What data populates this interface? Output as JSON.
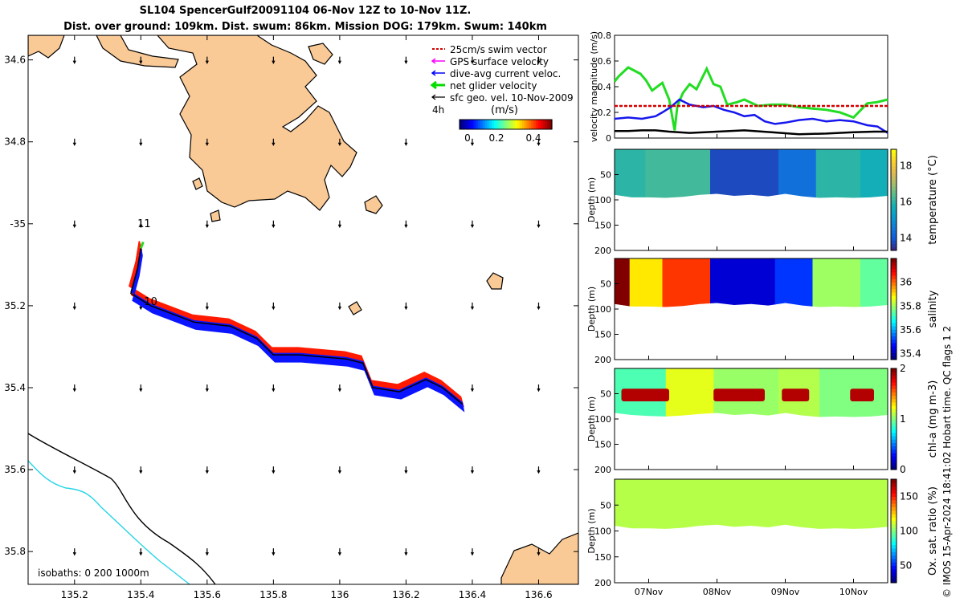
{
  "title_line1": "SL104 SpencerGulf20091104 06-Nov 12Z to 10-Nov 11Z.",
  "title_line2": "Dist. over ground: 109km. Dist. swum: 86km. Mission DOG: 179km. Swum: 140km",
  "credit": "© IMOS 15-Apr-2024 18:41:02 Hobart time. QC flags 1  2",
  "chart_data": [
    {
      "type": "map",
      "xlabel_ticks": [
        "135.2",
        "135.4",
        "135.6",
        "135.8",
        "136",
        "136.2",
        "136.4",
        "136.6"
      ],
      "xticks": [
        135.2,
        135.4,
        135.6,
        135.8,
        136.0,
        136.2,
        136.4,
        136.6
      ],
      "yticks": [
        -34.6,
        -34.8,
        -35.0,
        -35.2,
        -35.4,
        -35.6,
        -35.8
      ],
      "ytick_labels": [
        "34.6",
        "34.8",
        "-35",
        "35.2",
        "35.4",
        "35.6",
        "35.8"
      ],
      "xlim": [
        135.06,
        136.72
      ],
      "ylim": [
        -35.88,
        -34.54
      ],
      "legend": [
        {
          "label": "25cm/s swim vector",
          "color": "#d40000"
        },
        {
          "label": "GPS surface velocity",
          "color": "#ff00ff"
        },
        {
          "label": "dive-avg current veloc.",
          "color": "#0000ff"
        },
        {
          "label": "net glider velocity",
          "color": "#00dd00"
        },
        {
          "label": "sfc geo. vel. 10-Nov-2009",
          "color": "#000000"
        }
      ],
      "colorbar_title": "(m/s)",
      "colorbar_ticks": [
        "0",
        "0.2",
        "0.4"
      ],
      "colorbar_range": [
        0,
        0.5
      ],
      "time_label": "4h",
      "day_labels": [
        {
          "text": "11",
          "lon": 135.41,
          "lat": -35.0
        },
        {
          "text": "10",
          "lon": 135.43,
          "lat": -35.19
        }
      ],
      "isobath_text": "isobaths: 0   200  1000m",
      "track": [
        [
          135.4,
          -35.06
        ],
        [
          135.39,
          -35.11
        ],
        [
          135.37,
          -35.17
        ],
        [
          135.43,
          -35.2
        ],
        [
          135.56,
          -35.24
        ],
        [
          135.67,
          -35.25
        ],
        [
          135.75,
          -35.28
        ],
        [
          135.8,
          -35.32
        ],
        [
          135.88,
          -35.32
        ],
        [
          136.02,
          -35.33
        ],
        [
          136.07,
          -35.34
        ],
        [
          136.1,
          -35.4
        ],
        [
          136.18,
          -35.41
        ],
        [
          136.26,
          -35.38
        ],
        [
          136.31,
          -35.4
        ],
        [
          136.37,
          -35.44
        ]
      ],
      "land_color": "#f9c996",
      "isobath_colors": [
        "#000000",
        "#27d4e6"
      ]
    },
    {
      "type": "line",
      "ylabel": "velocity magnitude (m/s)",
      "ylim": [
        0,
        0.8
      ],
      "yticks": [
        "0",
        "0.2",
        "0.4",
        "0.6",
        "0.8"
      ],
      "xlim": [
        6.5,
        10.5
      ],
      "series": [
        {
          "name": "net glider velocity",
          "color": "#22dd22",
          "x": [
            6.5,
            6.56,
            6.7,
            6.88,
            6.96,
            7.05,
            7.2,
            7.3,
            7.38,
            7.42,
            7.5,
            7.6,
            7.7,
            7.85,
            7.95,
            8.05,
            8.15,
            8.3,
            8.4,
            8.6,
            8.8,
            9.0,
            9.2,
            9.4,
            9.6,
            9.8,
            10.0,
            10.2,
            10.35,
            10.5
          ],
          "values": [
            0.44,
            0.48,
            0.55,
            0.5,
            0.45,
            0.37,
            0.43,
            0.3,
            0.06,
            0.25,
            0.35,
            0.42,
            0.38,
            0.54,
            0.42,
            0.4,
            0.26,
            0.28,
            0.3,
            0.25,
            0.26,
            0.26,
            0.24,
            0.23,
            0.22,
            0.2,
            0.16,
            0.27,
            0.28,
            0.3
          ]
        },
        {
          "name": "dive-avg current veloc.",
          "color": "#1616ee",
          "x": [
            6.5,
            6.7,
            6.9,
            7.1,
            7.2,
            7.32,
            7.45,
            7.6,
            7.8,
            7.95,
            8.1,
            8.25,
            8.4,
            8.55,
            8.7,
            8.85,
            9.0,
            9.2,
            9.4,
            9.6,
            9.8,
            10.0,
            10.2,
            10.35,
            10.5
          ],
          "values": [
            0.15,
            0.16,
            0.15,
            0.17,
            0.2,
            0.24,
            0.3,
            0.26,
            0.24,
            0.25,
            0.22,
            0.2,
            0.17,
            0.18,
            0.13,
            0.11,
            0.12,
            0.14,
            0.15,
            0.13,
            0.14,
            0.13,
            0.1,
            0.09,
            0.04
          ]
        },
        {
          "name": "25cm/s swim vector",
          "color": "#d40000",
          "dashed": true,
          "x": [
            6.5,
            10.5
          ],
          "values": [
            0.25,
            0.25
          ]
        },
        {
          "name": "sfc geo. vel.",
          "color": "#000000",
          "x": [
            6.5,
            6.7,
            6.9,
            7.1,
            7.3,
            7.6,
            8.0,
            8.4,
            8.8,
            9.2,
            9.6,
            10.0,
            10.3,
            10.5
          ],
          "values": [
            0.055,
            0.055,
            0.06,
            0.06,
            0.05,
            0.04,
            0.05,
            0.06,
            0.045,
            0.03,
            0.035,
            0.045,
            0.05,
            0.05
          ]
        }
      ]
    },
    {
      "type": "heatmap",
      "ylabel": "Depth (m)",
      "ylim": [
        0,
        200
      ],
      "yticks": [
        "50",
        "100",
        "150",
        "200"
      ],
      "colorbar_label": "temperature (°C)",
      "colorbar_range": [
        13.3,
        18.9
      ],
      "colorbar_ticks": [
        "14",
        "16",
        "18"
      ],
      "bottom_depth": [
        90,
        95,
        95,
        96,
        94,
        90,
        88,
        92,
        90,
        93,
        88,
        93,
        96,
        95,
        96,
        95,
        92
      ],
      "columns": [
        {
          "x0": 6.5,
          "x1": 6.95,
          "value": 16.0
        },
        {
          "x0": 6.95,
          "x1": 7.9,
          "value": 16.2
        },
        {
          "x0": 7.9,
          "x1": 8.9,
          "value": 13.7
        },
        {
          "x0": 8.9,
          "x1": 9.45,
          "value": 14.3
        },
        {
          "x0": 9.45,
          "x1": 10.1,
          "value": 16.0
        },
        {
          "x0": 10.1,
          "x1": 10.5,
          "value": 15.7
        }
      ]
    },
    {
      "type": "heatmap",
      "ylabel": "Depth (m)",
      "ylim": [
        0,
        200
      ],
      "yticks": [
        "50",
        "100",
        "150",
        "200"
      ],
      "colorbar_label": "salinity",
      "colorbar_range": [
        35.35,
        36.2
      ],
      "colorbar_ticks": [
        "35.4",
        "35.6",
        "35.8",
        "36"
      ],
      "side_label": "QC flags 1  2",
      "bottom_depth": [
        90,
        95,
        95,
        96,
        94,
        90,
        88,
        92,
        90,
        93,
        88,
        93,
        96,
        95,
        96,
        95,
        92
      ],
      "columns": [
        {
          "x0": 6.5,
          "x1": 6.72,
          "value": 36.2
        },
        {
          "x0": 6.72,
          "x1": 7.2,
          "value": 35.9
        },
        {
          "x0": 7.2,
          "x1": 7.9,
          "value": 36.05
        },
        {
          "x0": 7.9,
          "x1": 8.85,
          "value": 35.42
        },
        {
          "x0": 8.85,
          "x1": 9.4,
          "value": 35.5
        },
        {
          "x0": 9.4,
          "x1": 10.1,
          "value": 35.8
        },
        {
          "x0": 10.1,
          "x1": 10.5,
          "value": 35.75
        }
      ]
    },
    {
      "type": "heatmap",
      "ylabel": "Depth (m)",
      "ylim": [
        0,
        200
      ],
      "yticks": [
        "50",
        "100",
        "150",
        "200"
      ],
      "colorbar_label": "chl-a (mg m-3)",
      "colorbar_range": [
        0,
        2
      ],
      "colorbar_ticks": [
        "0",
        "1",
        "2"
      ],
      "bottom_depth": [
        88,
        92,
        94,
        95,
        93,
        90,
        88,
        92,
        90,
        93,
        88,
        93,
        96,
        95,
        96,
        95,
        92
      ],
      "columns": [
        {
          "x0": 6.5,
          "x1": 7.25,
          "value": 0.9
        },
        {
          "x0": 7.25,
          "x1": 7.95,
          "value": 1.2
        },
        {
          "x0": 7.95,
          "x1": 8.9,
          "value": 1.05
        },
        {
          "x0": 8.9,
          "x1": 9.5,
          "value": 1.1
        },
        {
          "x0": 9.5,
          "x1": 10.5,
          "value": 1.0
        }
      ],
      "max_layer": {
        "depth_top": 40,
        "depth_bottom": 65,
        "value": 1.9,
        "segments": [
          [
            6.6,
            7.3
          ],
          [
            7.95,
            8.7
          ],
          [
            8.95,
            9.35
          ],
          [
            9.95,
            10.3
          ]
        ]
      }
    },
    {
      "type": "heatmap",
      "ylabel": "Depth (m)",
      "ylim": [
        0,
        200
      ],
      "yticks": [
        "50",
        "100",
        "150",
        "200"
      ],
      "colorbar_label": "Ox. sat. ratio (%)",
      "colorbar_range": [
        25,
        175
      ],
      "colorbar_ticks": [
        "50",
        "100",
        "150"
      ],
      "bottom_depth": [
        90,
        95,
        95,
        96,
        94,
        90,
        88,
        92,
        90,
        93,
        88,
        93,
        96,
        95,
        96,
        95,
        92
      ],
      "columns": [
        {
          "x0": 6.5,
          "x1": 10.5,
          "value": 108
        }
      ],
      "xticks": [
        7.0,
        8.0,
        9.0,
        10.0
      ],
      "xtick_labels": [
        "07Nov",
        "08Nov",
        "09Nov",
        "10Nov"
      ]
    }
  ]
}
